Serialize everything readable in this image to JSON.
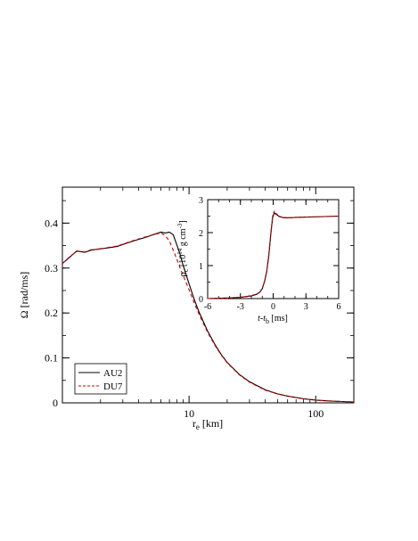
{
  "chart_data": [
    {
      "type": "line",
      "xscale": "log",
      "xlim": [
        1.0,
        200
      ],
      "ylim": [
        0,
        0.48
      ],
      "xlabel": {
        "main": "r",
        "sub": "e",
        "units": " [km]"
      },
      "ylabel": "Ω [rad/ms]",
      "xticks": [
        {
          "value": 10,
          "label": "10"
        },
        {
          "value": 100,
          "label": "100"
        }
      ],
      "yticks": [
        {
          "value": 0,
          "label": "0"
        },
        {
          "value": 0.1,
          "label": "0.1"
        },
        {
          "value": 0.2,
          "label": "0.2"
        },
        {
          "value": 0.3,
          "label": "0.3"
        },
        {
          "value": 0.4,
          "label": "0.4"
        }
      ],
      "legend_position": "bottom-left",
      "series": [
        {
          "name": "AU2",
          "color": "#000000",
          "style": "solid",
          "x": [
            1.0,
            1.15,
            1.3,
            1.5,
            1.7,
            2.0,
            2.3,
            2.7,
            3.2,
            3.8,
            4.5,
            5.3,
            6.0,
            6.5,
            7.0,
            7.5,
            8.0,
            8.5,
            9.0,
            10,
            11,
            12,
            14,
            16,
            18,
            20,
            25,
            30,
            40,
            50,
            60,
            80,
            100,
            130,
            160,
            200
          ],
          "y": [
            0.31,
            0.325,
            0.338,
            0.335,
            0.34,
            0.343,
            0.345,
            0.348,
            0.355,
            0.362,
            0.368,
            0.375,
            0.38,
            0.378,
            0.38,
            0.374,
            0.352,
            0.33,
            0.305,
            0.265,
            0.23,
            0.202,
            0.16,
            0.13,
            0.107,
            0.09,
            0.063,
            0.047,
            0.029,
            0.02,
            0.015,
            0.009,
            0.006,
            0.004,
            0.003,
            0.002
          ]
        },
        {
          "name": "DU7",
          "color": "#cc0000",
          "style": "dashed",
          "x": [
            1.0,
            1.15,
            1.3,
            1.5,
            1.7,
            2.0,
            2.3,
            2.7,
            3.2,
            3.8,
            4.5,
            5.3,
            6.0,
            6.5,
            7.0,
            7.5,
            8.0,
            8.5,
            9.0,
            10,
            11,
            12,
            14,
            16,
            18,
            20,
            25,
            30,
            40,
            50,
            60,
            80,
            100,
            130,
            160,
            200
          ],
          "y": [
            0.31,
            0.326,
            0.337,
            0.336,
            0.341,
            0.342,
            0.346,
            0.349,
            0.356,
            0.363,
            0.369,
            0.375,
            0.378,
            0.372,
            0.36,
            0.34,
            0.32,
            0.3,
            0.283,
            0.252,
            0.222,
            0.197,
            0.157,
            0.128,
            0.106,
            0.089,
            0.062,
            0.046,
            0.028,
            0.02,
            0.015,
            0.009,
            0.006,
            0.004,
            0.003,
            0.002
          ]
        }
      ]
    },
    {
      "type": "line",
      "xlim": [
        -6,
        6
      ],
      "ylim": [
        0,
        3
      ],
      "xlabel": {
        "main": "t-t",
        "sub": "b",
        "units": " [ms]"
      },
      "ylabel": {
        "main": "ρ",
        "sub": "c",
        "mid": " [10",
        "sup1": "14",
        "mid2": " g cm",
        "sup2": "-3",
        "end": "]"
      },
      "xticks": [
        {
          "value": -6,
          "label": "-6"
        },
        {
          "value": -3,
          "label": "-3"
        },
        {
          "value": 0,
          "label": "0"
        },
        {
          "value": 3,
          "label": "3"
        },
        {
          "value": 6,
          "label": "6"
        }
      ],
      "yticks": [
        {
          "value": 0,
          "label": "0"
        },
        {
          "value": 1,
          "label": "1"
        },
        {
          "value": 2,
          "label": "2"
        },
        {
          "value": 3,
          "label": "3"
        }
      ],
      "series": [
        {
          "color": "#000000",
          "style": "solid",
          "x": [
            -6,
            -4,
            -3,
            -2,
            -1.5,
            -1.2,
            -1.0,
            -0.8,
            -0.6,
            -0.4,
            -0.2,
            -0.05,
            0.1,
            0.3,
            0.6,
            1.0,
            1.5,
            2,
            3,
            4,
            5,
            6
          ],
          "y": [
            0.0,
            0.02,
            0.04,
            0.08,
            0.13,
            0.2,
            0.3,
            0.5,
            0.8,
            1.3,
            2.0,
            2.45,
            2.6,
            2.55,
            2.48,
            2.45,
            2.45,
            2.46,
            2.47,
            2.48,
            2.49,
            2.5
          ]
        },
        {
          "color": "#cc0000",
          "style": "dashed",
          "x": [
            -6,
            -4,
            -3,
            -2,
            -1.5,
            -1.2,
            -1.0,
            -0.8,
            -0.6,
            -0.4,
            -0.2,
            -0.05,
            0.1,
            0.3,
            0.6,
            1.0,
            1.5,
            2,
            3,
            4,
            5,
            6
          ],
          "y": [
            0.0,
            0.02,
            0.04,
            0.09,
            0.14,
            0.21,
            0.32,
            0.52,
            0.83,
            1.35,
            2.05,
            2.5,
            2.65,
            2.57,
            2.49,
            2.46,
            2.45,
            2.46,
            2.47,
            2.48,
            2.49,
            2.5
          ]
        }
      ]
    }
  ]
}
